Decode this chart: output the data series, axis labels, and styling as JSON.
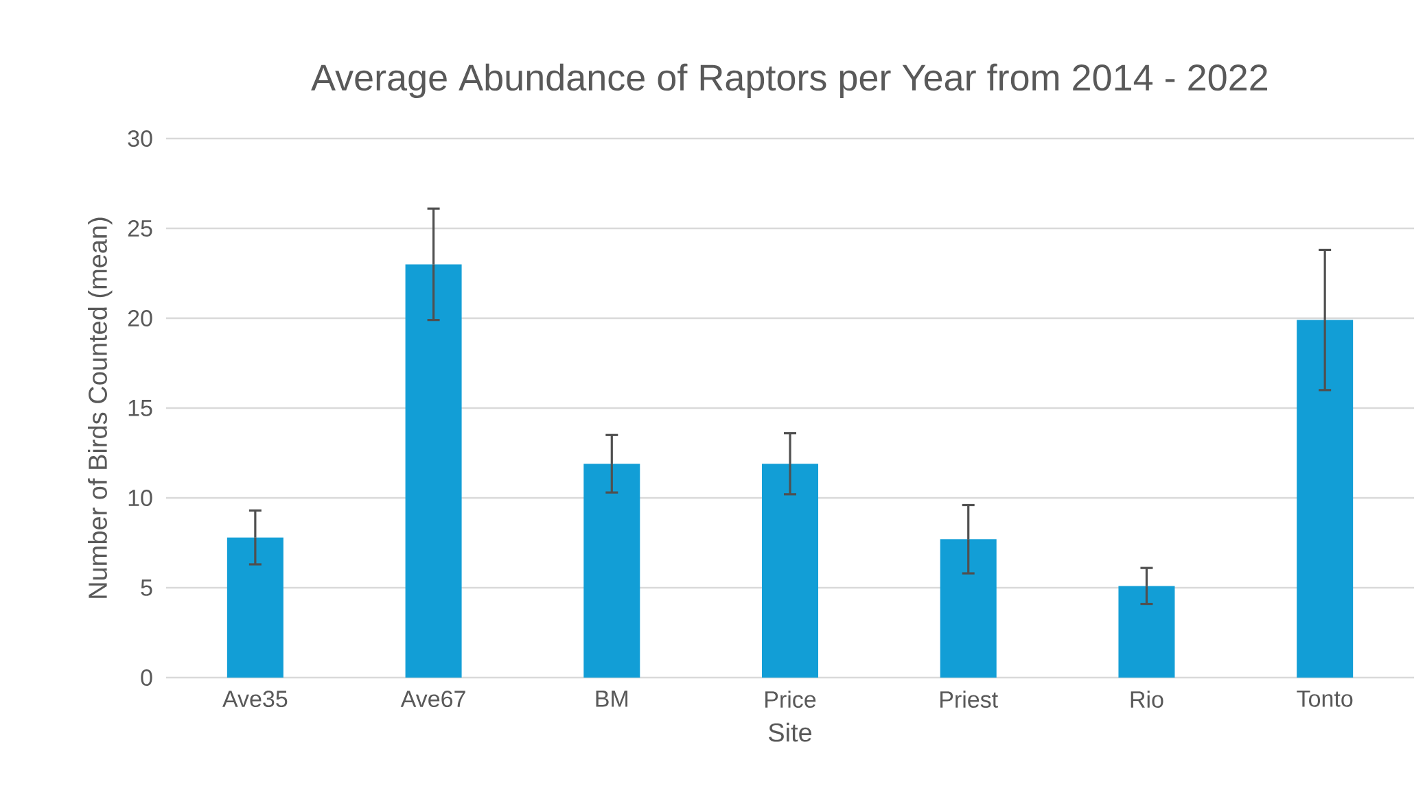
{
  "chart_data": {
    "type": "bar",
    "title": "Average Abundance of Raptors per Year from 2014 - 2022",
    "xlabel": "Site",
    "ylabel": "Number of Birds Counted (mean)",
    "categories": [
      "Ave35",
      "Ave67",
      "BM",
      "Price",
      "Priest",
      "Rio",
      "Tonto"
    ],
    "values": [
      7.8,
      23.0,
      11.9,
      11.9,
      7.7,
      5.1,
      19.9
    ],
    "errors": [
      1.5,
      3.1,
      1.6,
      1.7,
      1.9,
      1.0,
      3.9
    ],
    "color": "#129ed6",
    "ylim": [
      0,
      30
    ],
    "yticks": [
      0,
      5,
      10,
      15,
      20,
      25,
      30
    ],
    "grid": "y"
  }
}
